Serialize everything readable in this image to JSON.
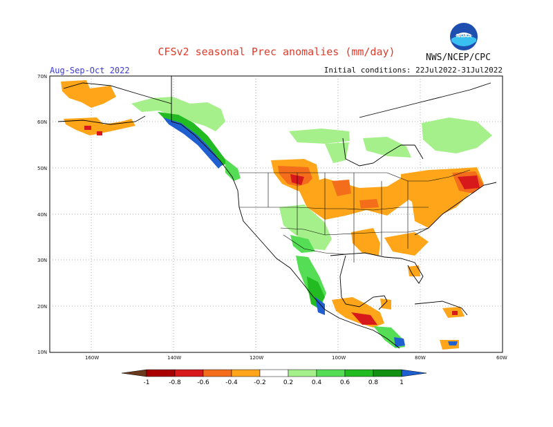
{
  "title": "CFSv2 seasonal Prec anomalies (mm/day)",
  "period": "Aug-Sep-Oct 2022",
  "initial_conditions": "Initial conditions: 22Jul2022-31Jul2022",
  "agency": "NWS/NCEP/CPC",
  "logo_text": "NOAA",
  "lat_labels": [
    "70N",
    "60N",
    "50N",
    "40N",
    "30N",
    "20N",
    "10N"
  ],
  "lon_labels": [
    "160W",
    "140W",
    "120W",
    "100W",
    "80W",
    "60W"
  ],
  "colorbar": {
    "ticks": [
      "-1",
      "-0.8",
      "-0.6",
      "-0.4",
      "-0.2",
      "0.2",
      "0.4",
      "0.6",
      "0.8",
      "1"
    ],
    "colors": [
      "#6b3a1e",
      "#a80000",
      "#d7191c",
      "#f46d1a",
      "#fea51a",
      "#ffffff",
      "#a5f08a",
      "#55dd55",
      "#22bb22",
      "#129012",
      "#1f5fd0"
    ]
  }
}
